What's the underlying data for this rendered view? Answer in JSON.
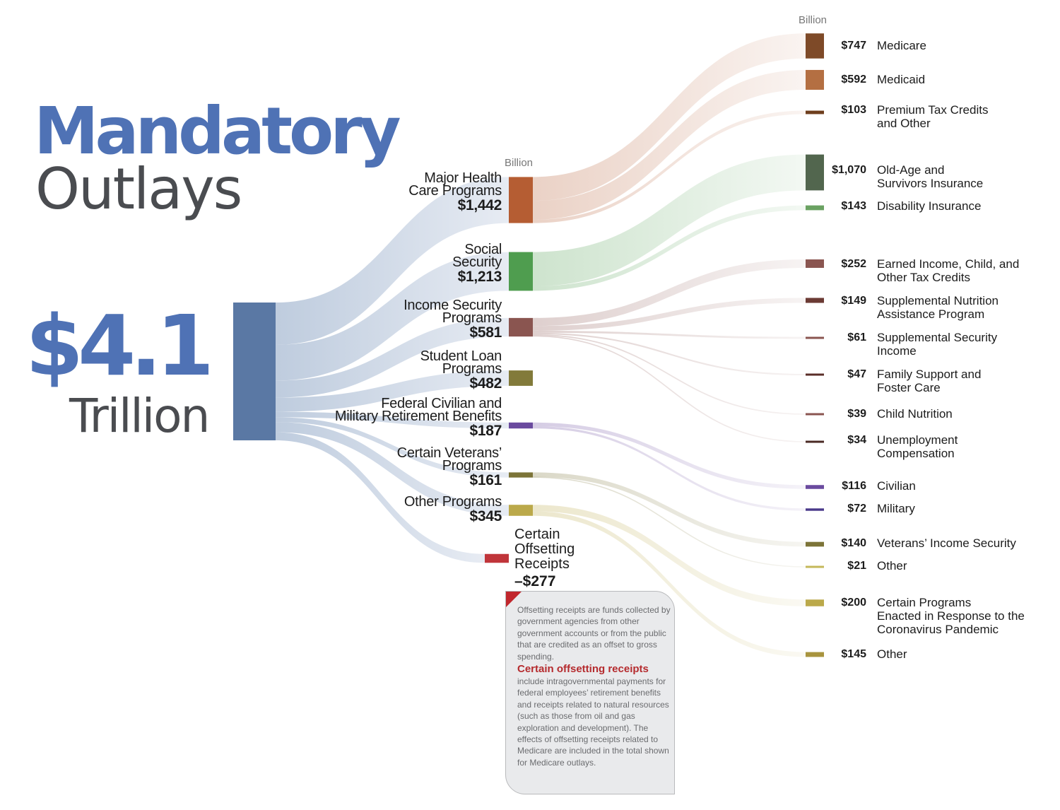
{
  "title": {
    "main": "Mandatory",
    "sub": "Outlays"
  },
  "total": {
    "value": "$4.1",
    "unit": "Trillion"
  },
  "unit_labels": {
    "middle": "Billion",
    "right": "Billion"
  },
  "offset_note": {
    "intro": "Offsetting receipts are funds collected by government agencies from other government accounts or from the public that are credited as an offset to gross spending.",
    "highlight": "Certain offsetting receipts",
    "body": "include intragovernmental payments for federal employees’ retirement benefits and receipts related to natural resources (such as those from oil and gas exploration and development). The effects of offsetting receipts related to Medicare are included in the total shown for Medicare outlays."
  },
  "chart_data": {
    "type": "sankey",
    "title": "Mandatory Outlays",
    "total": {
      "label": "$4.1 Trillion",
      "value": 4.1,
      "units": "trillion dollars",
      "color": "#5a78a4"
    },
    "units": "Billion",
    "categories": [
      {
        "name": "Major Health Care Programs",
        "lines": [
          "Major Health",
          "Care Programs"
        ],
        "label": "$1,442",
        "value": 1442,
        "color": "#b55d33",
        "children": [
          {
            "name": "Medicare",
            "lines": [
              "Medicare"
            ],
            "label": "$747",
            "value": 747,
            "color": "#7e4a28"
          },
          {
            "name": "Medicaid",
            "lines": [
              "Medicaid"
            ],
            "label": "$592",
            "value": 592,
            "color": "#b46f42"
          },
          {
            "name": "Premium Tax Credits and Other",
            "lines": [
              "Premium Tax Credits",
              "and Other"
            ],
            "label": "$103",
            "value": 103,
            "color": "#6e3e1d"
          }
        ]
      },
      {
        "name": "Social Security",
        "lines": [
          "Social",
          "Security"
        ],
        "label": "$1,213",
        "value": 1213,
        "color": "#4f9d4f",
        "children": [
          {
            "name": "Old-Age and Survivors Insurance",
            "lines": [
              "Old-Age and",
              "Survivors Insurance"
            ],
            "label": "$1,070",
            "value": 1070,
            "color": "#52664e"
          },
          {
            "name": "Disability Insurance",
            "lines": [
              "Disability Insurance"
            ],
            "label": "$143",
            "value": 143,
            "color": "#6aa262"
          }
        ]
      },
      {
        "name": "Income Security Programs",
        "lines": [
          "Income Security",
          "Programs"
        ],
        "label": "$581",
        "value": 581,
        "color": "#8a5550",
        "children": [
          {
            "name": "Earned Income, Child, and Other Tax Credits",
            "lines": [
              "Earned Income, Child, and",
              "Other Tax Credits"
            ],
            "label": "$252",
            "value": 252,
            "color": "#8a5550"
          },
          {
            "name": "Supplemental Nutrition Assistance Program",
            "lines": [
              "Supplemental Nutrition",
              "Assistance Program"
            ],
            "label": "$149",
            "value": 149,
            "color": "#6b3a34"
          },
          {
            "name": "Supplemental Security Income",
            "lines": [
              "Supplemental Security",
              "Income"
            ],
            "label": "$61",
            "value": 61,
            "color": "#8a5550"
          },
          {
            "name": "Family Support and Foster Care",
            "lines": [
              "Family Support and",
              "Foster Care"
            ],
            "label": "$47",
            "value": 47,
            "color": "#5a2e28"
          },
          {
            "name": "Child Nutrition",
            "lines": [
              "Child Nutrition"
            ],
            "label": "$39",
            "value": 39,
            "color": "#8a5550"
          },
          {
            "name": "Unemployment Compensation",
            "lines": [
              "Unemployment",
              "Compensation"
            ],
            "label": "$34",
            "value": 34,
            "color": "#4a2a24"
          }
        ]
      },
      {
        "name": "Student Loan Programs",
        "lines": [
          "Student Loan",
          "Programs"
        ],
        "label": "$482",
        "value": 482,
        "color": "#827a3a",
        "children": []
      },
      {
        "name": "Federal Civilian and Military Retirement Benefits",
        "lines": [
          "Federal Civilian and",
          "Military Retirement Benefits"
        ],
        "label": "$187",
        "value": 187,
        "color": "#6a4a9e",
        "children": [
          {
            "name": "Civilian",
            "lines": [
              "Civilian"
            ],
            "label": "$116",
            "value": 116,
            "color": "#6a4a9e"
          },
          {
            "name": "Military",
            "lines": [
              "Military"
            ],
            "label": "$72",
            "value": 72,
            "color": "#4a3a8a"
          }
        ]
      },
      {
        "name": "Certain Veterans’ Programs",
        "lines": [
          "Certain Veterans’",
          "Programs"
        ],
        "label": "$161",
        "value": 161,
        "color": "#7c7438",
        "children": [
          {
            "name": "Veterans’ Income Security",
            "lines": [
              "Veterans’ Income Security"
            ],
            "label": "$140",
            "value": 140,
            "color": "#7c7438"
          },
          {
            "name": "Other",
            "lines": [
              "Other"
            ],
            "label": "$21",
            "value": 21,
            "color": "#c4b85a"
          }
        ]
      },
      {
        "name": "Other Programs",
        "lines": [
          "Other Programs"
        ],
        "label": "$345",
        "value": 345,
        "color": "#bba94a",
        "children": [
          {
            "name": "Certain Programs Enacted in Response to the Coronavirus Pandemic",
            "lines": [
              "Certain Programs",
              "Enacted in Response to the",
              "Coronavirus Pandemic"
            ],
            "label": "$200",
            "value": 200,
            "color": "#bba94a"
          },
          {
            "name": "Other",
            "lines": [
              "Other"
            ],
            "label": "$145",
            "value": 145,
            "color": "#a8943e"
          }
        ]
      },
      {
        "name": "Certain Offsetting Receipts",
        "lines": [
          "Certain",
          "Offsetting",
          "Receipts"
        ],
        "label": "–$277",
        "value": -277,
        "color": "#c0353a",
        "children": []
      }
    ]
  }
}
